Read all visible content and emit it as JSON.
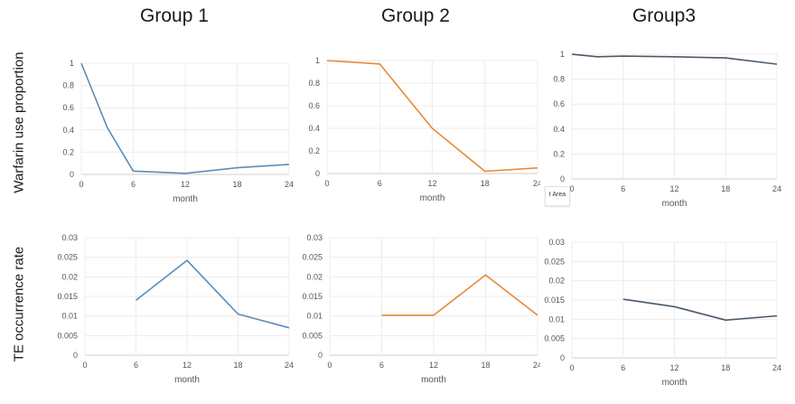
{
  "column_titles": [
    "Group 1",
    "Group 2",
    "Group3"
  ],
  "row_labels": [
    "Warfarin use proportion",
    "TE occurrence rate"
  ],
  "tooltip_text": "t Area",
  "chart_data": [
    {
      "id": "warfarin-group1",
      "type": "line",
      "title": "Group 1",
      "xlabel": "month",
      "ylabel": "Warfarin use proportion",
      "color": "#5b8db8",
      "x": [
        0,
        3,
        6,
        12,
        18,
        24
      ],
      "y": [
        1,
        0.42,
        0.03,
        0.01,
        0.06,
        0.09
      ],
      "xticks": [
        0,
        6,
        12,
        18,
        24
      ],
      "xlim": [
        0,
        24
      ],
      "yticks": [
        0,
        0.2,
        0.4,
        0.6,
        0.8,
        1
      ],
      "ytick_labels": [
        "0",
        "0.2",
        "0.4",
        "0.6",
        "0.8",
        "1"
      ],
      "ylim": [
        0,
        1
      ]
    },
    {
      "id": "warfarin-group2",
      "type": "line",
      "title": "Group 2",
      "xlabel": "month",
      "ylabel": "Warfarin use proportion",
      "color": "#e8893a",
      "x": [
        0,
        6,
        12,
        18,
        24
      ],
      "y": [
        1,
        0.97,
        0.4,
        0.02,
        0.05
      ],
      "xticks": [
        0,
        6,
        12,
        18,
        24
      ],
      "xlim": [
        0,
        24
      ],
      "yticks": [
        0,
        0.2,
        0.4,
        0.6,
        0.8,
        1
      ],
      "ytick_labels": [
        "0",
        "0.2",
        "0.4",
        "0.6",
        "0.8",
        "1"
      ],
      "ylim": [
        0,
        1
      ]
    },
    {
      "id": "warfarin-group3",
      "type": "line",
      "title": "Group3",
      "xlabel": "month",
      "ylabel": "Warfarin use proportion",
      "color": "#4a5a6a",
      "x": [
        0,
        3,
        6,
        12,
        18,
        24
      ],
      "y": [
        1,
        0.98,
        0.985,
        0.98,
        0.97,
        0.92
      ],
      "xticks": [
        0,
        6,
        12,
        18,
        24
      ],
      "xlim": [
        0,
        24
      ],
      "yticks": [
        0,
        0.2,
        0.4,
        0.6,
        0.8,
        1
      ],
      "ytick_labels": [
        "0",
        "0.2",
        "0.4",
        "0.6",
        "0.8",
        "1"
      ],
      "ylim": [
        0,
        1
      ]
    },
    {
      "id": "te-group1",
      "type": "line",
      "title": "Group 1",
      "xlabel": "month",
      "ylabel": "TE occurrence rate",
      "color": "#5b8db8",
      "x": [
        6,
        12,
        18,
        24
      ],
      "y": [
        0.014,
        0.0242,
        0.0105,
        0.007
      ],
      "xticks": [
        0,
        6,
        12,
        18,
        24
      ],
      "xlim": [
        0,
        24
      ],
      "yticks": [
        0,
        0.005,
        0.01,
        0.015,
        0.02,
        0.025,
        0.03
      ],
      "ytick_labels": [
        "0",
        "0.005",
        "0.01",
        "0.015",
        "0.02",
        "0.025",
        "0.03"
      ],
      "ylim": [
        0,
        0.03
      ]
    },
    {
      "id": "te-group2",
      "type": "line",
      "title": "Group 2",
      "xlabel": "month",
      "ylabel": "TE occurrence rate",
      "color": "#e8893a",
      "x": [
        6,
        12,
        18,
        24
      ],
      "y": [
        0.0102,
        0.0102,
        0.0205,
        0.0102
      ],
      "xticks": [
        0,
        6,
        12,
        18,
        24
      ],
      "xlim": [
        0,
        24
      ],
      "yticks": [
        0,
        0.005,
        0.01,
        0.015,
        0.02,
        0.025,
        0.03
      ],
      "ytick_labels": [
        "0",
        "0.005",
        "0.01",
        "0.015",
        "0.02",
        "0.025",
        "0.03"
      ],
      "ylim": [
        0,
        0.03
      ]
    },
    {
      "id": "te-group3",
      "type": "line",
      "title": "Group3",
      "xlabel": "month",
      "ylabel": "TE occurrence rate",
      "color": "#4a5a6a",
      "x": [
        6,
        12,
        18,
        24
      ],
      "y": [
        0.0152,
        0.0133,
        0.0098,
        0.0109
      ],
      "xticks": [
        0,
        6,
        12,
        18,
        24
      ],
      "xlim": [
        0,
        24
      ],
      "yticks": [
        0,
        0.005,
        0.01,
        0.015,
        0.02,
        0.025,
        0.03
      ],
      "ytick_labels": [
        "0",
        "0.005",
        "0.01",
        "0.015",
        "0.02",
        "0.025",
        "0.03"
      ],
      "ylim": [
        0,
        0.03
      ]
    }
  ]
}
